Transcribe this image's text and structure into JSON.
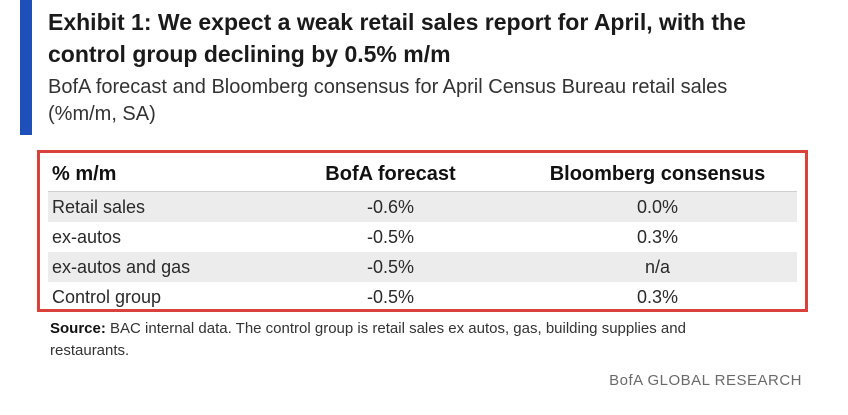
{
  "exhibit": {
    "title_line1": "Exhibit 1: We expect a weak retail sales report for April, with the",
    "title_line2": "control group declining by 0.5% m/m",
    "subtitle_line1": "BofA forecast and Bloomberg consensus for April Census Bureau retail sales",
    "subtitle_line2": "(%m/m, SA)"
  },
  "table": {
    "headers": [
      "% m/m",
      "BofA forecast",
      "Bloomberg consensus"
    ],
    "rows": [
      {
        "label": "Retail sales",
        "bofa": "-0.6%",
        "bloomberg": "0.0%"
      },
      {
        "label": "ex-autos",
        "bofa": "-0.5%",
        "bloomberg": "0.3%"
      },
      {
        "label": "ex-autos and gas",
        "bofa": "-0.5%",
        "bloomberg": "n/a"
      },
      {
        "label": "Control group",
        "bofa": "-0.5%",
        "bloomberg": "0.3%"
      }
    ]
  },
  "source": {
    "label": "Source:",
    "text_line1": " BAC internal data. The control group is retail sales ex autos, gas, building supplies and",
    "text_line2": "restaurants."
  },
  "footer": {
    "brand": "BofA GLOBAL RESEARCH"
  },
  "colors": {
    "accent_bar": "#1f4fb8",
    "table_border": "#d9423a",
    "row_shade": "#ececec"
  }
}
